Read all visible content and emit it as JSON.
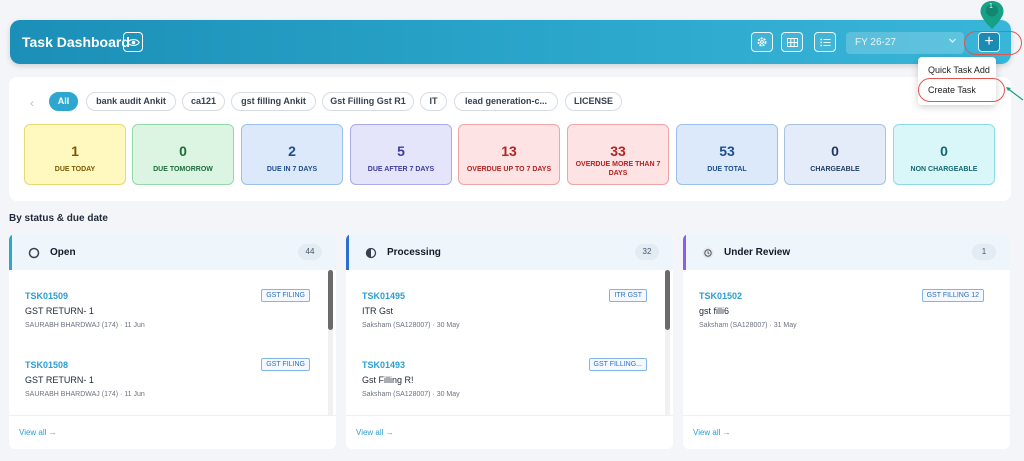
{
  "header": {
    "title": "Task Dashboard",
    "fy_select": "FY 26-27",
    "plus_label": "+",
    "tour_step": "1"
  },
  "dropdown": {
    "items": [
      "Quick Task Add",
      "Create Task"
    ]
  },
  "filters": {
    "chips": [
      "All",
      "bank audit Ankit",
      "ca121",
      "gst filling Ankit",
      "Gst Filling Gst R1",
      "IT",
      "lead generation-c...",
      "LICENSE"
    ]
  },
  "summary_cards": [
    {
      "value": "1",
      "label": "DUE TODAY",
      "bg": "#fff8bf",
      "border": "#e8d874",
      "color": "#7a5a00"
    },
    {
      "value": "0",
      "label": "DUE TOMORROW",
      "bg": "#dcf5e3",
      "border": "#93d8a8",
      "color": "#1f6b3a"
    },
    {
      "value": "2",
      "label": "DUE IN 7 DAYS",
      "bg": "#dce9fa",
      "border": "#9cc0ee",
      "color": "#1f4d8f"
    },
    {
      "value": "5",
      "label": "DUE AFTER 7 DAYS",
      "bg": "#e4e4fb",
      "border": "#a9a9ec",
      "color": "#3d3d9e"
    },
    {
      "value": "13",
      "label": "OVERDUE UP TO 7 DAYS",
      "bg": "#fde3e3",
      "border": "#f0a4a4",
      "color": "#b32424"
    },
    {
      "value": "33",
      "label": "OVERDUE MORE THAN 7 DAYS",
      "bg": "#fde3e3",
      "border": "#f0a4a4",
      "color": "#b32424"
    },
    {
      "value": "53",
      "label": "DUE TOTAL",
      "bg": "#dce9fa",
      "border": "#9cc0ee",
      "color": "#1f4d8f"
    },
    {
      "value": "0",
      "label": "CHARGEABLE",
      "bg": "#e3ecf8",
      "border": "#a8c1e4",
      "color": "#1e3a5f"
    },
    {
      "value": "0",
      "label": "NON CHARGEABLE",
      "bg": "#d9f6f8",
      "border": "#8fdbe3",
      "color": "#13696f"
    }
  ],
  "section_title": "By status & due date",
  "columns": [
    {
      "title": "Open",
      "count": "44",
      "accent": "#2ea7d0",
      "icon": "open-circle-icon",
      "tasks": [
        {
          "id": "TSK01509",
          "tag": "GST FILING",
          "name": "GST RETURN- 1",
          "meta": "SAURABH BHARDWAJ (174) · 11 Jun"
        },
        {
          "id": "TSK01508",
          "tag": "GST FILING",
          "name": "GST RETURN- 1",
          "meta": "SAURABH BHARDWAJ (174) · 11 Jun"
        }
      ],
      "view_all": "View all →"
    },
    {
      "title": "Processing",
      "count": "32",
      "accent": "#2b6fd0",
      "icon": "half-circle-icon",
      "tasks": [
        {
          "id": "TSK01495",
          "tag": "ITR GST",
          "name": "ITR Gst",
          "meta": "Saksham (SA128007) · 30 May"
        },
        {
          "id": "TSK01493",
          "tag": "GST FILLING...",
          "name": "Gst Filling R!",
          "meta": "Saksham (SA128007) · 30 May"
        }
      ],
      "view_all": "View all →"
    },
    {
      "title": "Under Review",
      "count": "1",
      "accent": "#8b5cf6",
      "icon": "clock-icon",
      "tasks": [
        {
          "id": "TSK01502",
          "tag": "GST FILLING 12",
          "name": "gst filli6",
          "meta": "Saksham (SA128007) · 31 May"
        }
      ],
      "view_all": "View all →"
    }
  ]
}
